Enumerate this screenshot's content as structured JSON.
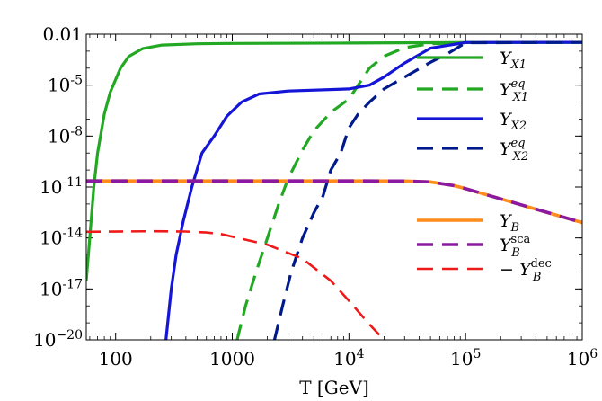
{
  "chart_data": {
    "type": "line",
    "title": "",
    "xlabel": "T [GeV]",
    "ylabel": "",
    "xscale": "log",
    "yscale": "log",
    "xlim": [
      56,
      1000000
    ],
    "ylim": [
      1e-20,
      0.01
    ],
    "grid": false,
    "legend_position": "right",
    "x_ticks": [
      {
        "value": 100,
        "label": "100"
      },
      {
        "value": 1000,
        "label": "1000"
      },
      {
        "value": 10000,
        "base": "10",
        "exp": "4"
      },
      {
        "value": 100000,
        "base": "10",
        "exp": "5"
      },
      {
        "value": 1000000,
        "base": "10",
        "exp": "6"
      }
    ],
    "y_ticks": [
      {
        "value": 0.01,
        "label": "0.01"
      },
      {
        "value": 1e-05,
        "base": "10",
        "exp": "-5"
      },
      {
        "value": 1e-08,
        "base": "10",
        "exp": "-8"
      },
      {
        "value": 1e-11,
        "base": "10",
        "exp": "-11"
      },
      {
        "value": 1e-14,
        "base": "10",
        "exp": "-14"
      },
      {
        "value": 1e-17,
        "base": "10",
        "exp": "-17"
      },
      {
        "value": 1e-20,
        "base": "10",
        "exp": "−20"
      }
    ],
    "series": [
      {
        "name": "Y_X1",
        "legend": {
          "sym": "Y",
          "sub": "X1",
          "sup": ""
        },
        "color": "#22a822",
        "dash": "solid",
        "width": 3.2,
        "points": [
          [
            56,
            3e-17
          ],
          [
            60,
            1e-14
          ],
          [
            65,
            1e-11
          ],
          [
            70,
            1e-09
          ],
          [
            80,
            2e-07
          ],
          [
            90,
            4e-06
          ],
          [
            110,
            0.0001
          ],
          [
            130,
            0.0005
          ],
          [
            170,
            0.0014
          ],
          [
            250,
            0.0023
          ],
          [
            500,
            0.0027
          ],
          [
            1000,
            0.00285
          ],
          [
            10000,
            0.003
          ],
          [
            100000,
            0.0032
          ],
          [
            1000000,
            0.0033
          ]
        ]
      },
      {
        "name": "Y_X1^eq",
        "legend": {
          "sym": "Y",
          "sub": "X1",
          "sup": "eq"
        },
        "color": "#22a822",
        "dash": "dashed",
        "width": 3.2,
        "points": [
          [
            1100,
            1e-20
          ],
          [
            1300,
            1e-18
          ],
          [
            1600,
            1e-16
          ],
          [
            2000,
            1e-14
          ],
          [
            2500,
            1e-12
          ],
          [
            3000,
            3e-11
          ],
          [
            4000,
            1.5e-09
          ],
          [
            5000,
            2e-08
          ],
          [
            7000,
            2.5e-07
          ],
          [
            10000,
            1.5e-06
          ],
          [
            15000,
            0.0001
          ],
          [
            20000,
            0.0005
          ],
          [
            30000,
            0.0016
          ],
          [
            50000,
            0.0027
          ],
          [
            100000,
            0.0032
          ],
          [
            1000000,
            0.0033
          ]
        ]
      },
      {
        "name": "Y_X2",
        "legend": {
          "sym": "Y",
          "sub": "X2",
          "sup": ""
        },
        "color": "#1515d8",
        "dash": "solid",
        "width": 3.2,
        "points": [
          [
            270,
            1e-20
          ],
          [
            300,
            1e-17
          ],
          [
            330,
            1e-15
          ],
          [
            380,
            1e-13
          ],
          [
            450,
            1e-11
          ],
          [
            550,
            1e-09
          ],
          [
            700,
            1e-08
          ],
          [
            900,
            1.5e-07
          ],
          [
            1200,
            1e-06
          ],
          [
            1700,
            3e-06
          ],
          [
            3000,
            4.5e-06
          ],
          [
            10000,
            6e-06
          ],
          [
            15000,
            1e-05
          ],
          [
            20000,
            3e-05
          ],
          [
            30000,
            0.0002
          ],
          [
            50000,
            0.0015
          ],
          [
            100000,
            0.0032
          ],
          [
            1000000,
            0.0033
          ]
        ]
      },
      {
        "name": "Y_X2^eq",
        "legend": {
          "sym": "Y",
          "sub": "X2",
          "sup": "eq"
        },
        "color": "#001a8c",
        "dash": "dashed",
        "width": 3.2,
        "points": [
          [
            2300,
            1e-20
          ],
          [
            2700,
            1e-18
          ],
          [
            3200,
            1e-16
          ],
          [
            4000,
            1e-14
          ],
          [
            5000,
            3e-13
          ],
          [
            6000,
            3e-12
          ],
          [
            7000,
            1e-10
          ],
          [
            8500,
            1e-09
          ],
          [
            10000,
            3e-08
          ],
          [
            12000,
            2e-07
          ],
          [
            15000,
            1e-06
          ],
          [
            20000,
            6e-06
          ],
          [
            30000,
            3e-05
          ],
          [
            50000,
            0.00022
          ],
          [
            70000,
            0.0007
          ],
          [
            100000,
            0.0031
          ],
          [
            1000000,
            0.0033
          ]
        ]
      },
      {
        "name": "Y_B",
        "legend": {
          "sym": "Y",
          "sub": "B",
          "sup": ""
        },
        "color": "#ff8c1a",
        "dash": "solid",
        "width": 3.6,
        "points": [
          [
            56,
            2.3e-11
          ],
          [
            1000,
            2.3e-11
          ],
          [
            10000,
            2.3e-11
          ],
          [
            30000,
            2.25e-11
          ],
          [
            50000,
            2e-11
          ],
          [
            80000,
            1.2e-11
          ],
          [
            100000,
            8e-12
          ],
          [
            200000,
            2e-12
          ],
          [
            400000,
            5e-13
          ],
          [
            1000000,
            8e-14
          ]
        ]
      },
      {
        "name": "Y_B^sca",
        "legend": {
          "sym": "Y",
          "sub": "B",
          "sup": "sca"
        },
        "color": "#8a1aa0",
        "dash": "dashed",
        "width": 3.6,
        "points": [
          [
            56,
            2.3e-11
          ],
          [
            1000,
            2.3e-11
          ],
          [
            10000,
            2.3e-11
          ],
          [
            30000,
            2.25e-11
          ],
          [
            50000,
            2e-11
          ],
          [
            80000,
            1.2e-11
          ],
          [
            100000,
            8e-12
          ],
          [
            200000,
            2e-12
          ],
          [
            400000,
            5e-13
          ],
          [
            1000000,
            8e-14
          ]
        ]
      },
      {
        "name": "-Y_B^dec",
        "legend": {
          "sym": "Y",
          "sub": "B",
          "sup": "dec",
          "prefix": "− "
        },
        "color": "#ee1a1a",
        "dash": "dashed",
        "width": 2.6,
        "points": [
          [
            56,
            2.3e-14
          ],
          [
            200,
            2.5e-14
          ],
          [
            400,
            2.4e-14
          ],
          [
            600,
            2.1e-14
          ],
          [
            800,
            1.7e-14
          ],
          [
            1000,
            1.2e-14
          ],
          [
            2000,
            4e-15
          ],
          [
            4000,
            6e-16
          ],
          [
            7000,
            3e-17
          ],
          [
            10000,
            2e-18
          ],
          [
            15000,
            8e-20
          ],
          [
            20000,
            1e-20
          ]
        ]
      }
    ]
  }
}
